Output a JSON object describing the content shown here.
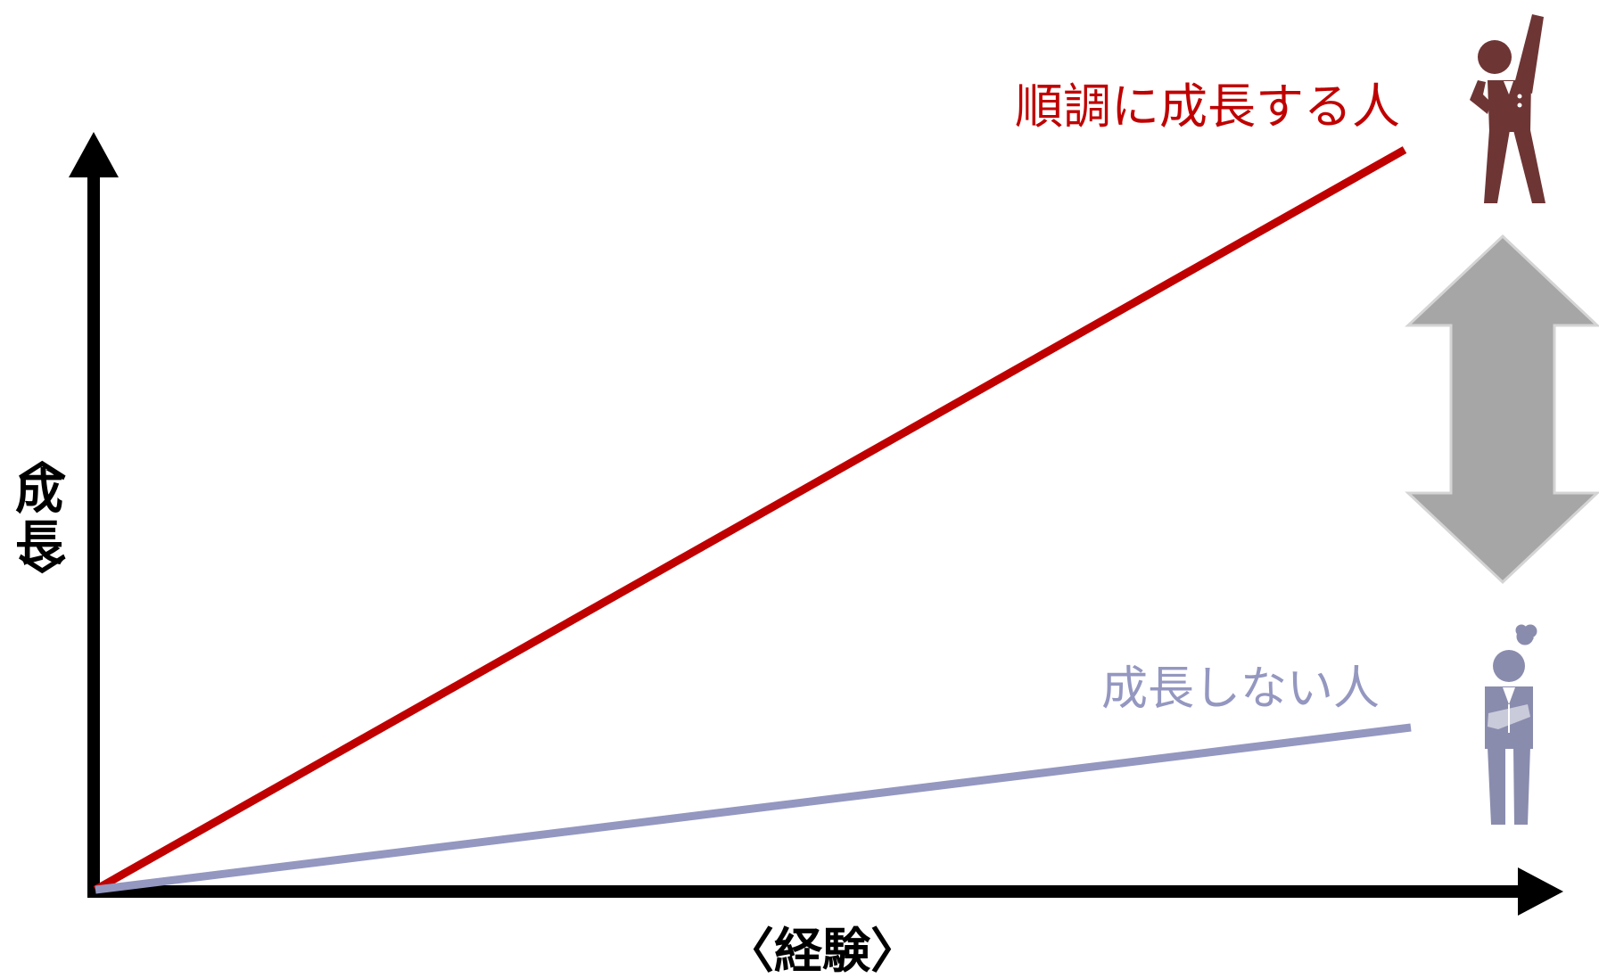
{
  "axes": {
    "x_label": "〈経験〉",
    "y_label_chars": [
      "〈",
      "成",
      "長",
      "〉"
    ]
  },
  "lines": [
    {
      "label": "順調に成長する人",
      "color": "#c00000",
      "end_growth": 0.9
    },
    {
      "label": "成長しない人",
      "color": "#9497c0",
      "end_growth": 0.2
    }
  ],
  "figures": {
    "growing": {
      "icon": "cheering-businessman-icon",
      "color": "#6e3535"
    },
    "flat": {
      "icon": "worried-businessman-icon",
      "color": "#8a8cae"
    }
  },
  "compare_arrow": {
    "icon": "double-headed-vertical-arrow-icon",
    "color": "#a6a6a6"
  }
}
